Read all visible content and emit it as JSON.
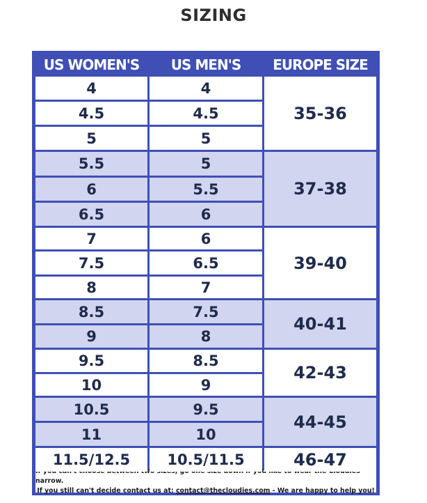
{
  "title": "SIZING",
  "table": {
    "headers": [
      "US WOMEN'S",
      "US MEN'S",
      "EUROPE SIZE"
    ],
    "rows": [
      {
        "women": "4",
        "men": "4"
      },
      {
        "women": "4.5",
        "men": "4.5"
      },
      {
        "women": "5",
        "men": "5"
      },
      {
        "women": "5.5",
        "men": "5"
      },
      {
        "women": "6",
        "men": "5.5"
      },
      {
        "women": "6.5",
        "men": "6"
      },
      {
        "women": "7",
        "men": "6"
      },
      {
        "women": "7.5",
        "men": "6.5"
      },
      {
        "women": "8",
        "men": "7"
      },
      {
        "women": "8.5",
        "men": "7.5"
      },
      {
        "women": "9",
        "men": "8"
      },
      {
        "women": "9.5",
        "men": "8.5"
      },
      {
        "women": "10",
        "men": "9"
      },
      {
        "women": "10.5",
        "men": "9.5"
      },
      {
        "women": "11",
        "men": "10"
      },
      {
        "women": "11.5/12.5",
        "men": "10.5/11.5"
      }
    ],
    "europe_groups": [
      {
        "label": "35-36",
        "rows": 3,
        "shaded": false
      },
      {
        "label": "37-38",
        "rows": 3,
        "shaded": true
      },
      {
        "label": "39-40",
        "rows": 3,
        "shaded": false
      },
      {
        "label": "40-41",
        "rows": 2,
        "shaded": true
      },
      {
        "label": "42-43",
        "rows": 2,
        "shaded": false
      },
      {
        "label": "44-45",
        "rows": 2,
        "shaded": true
      },
      {
        "label": "46-47",
        "rows": 1,
        "shaded": false
      }
    ]
  },
  "footer": {
    "line1": "If you can't choose between two sizes, go one size down if you like to wear the Cloudies narrow.",
    "line2_prefix": "If you still can't decide contact us at: ",
    "email": "contact@thecloudies.com",
    "line2_suffix": " - We are happy to help you!"
  },
  "colors": {
    "border": "#3f4fb6",
    "shade": "#d1d5ef",
    "text": "#1f2b4d",
    "header_text": "#ffffff"
  }
}
